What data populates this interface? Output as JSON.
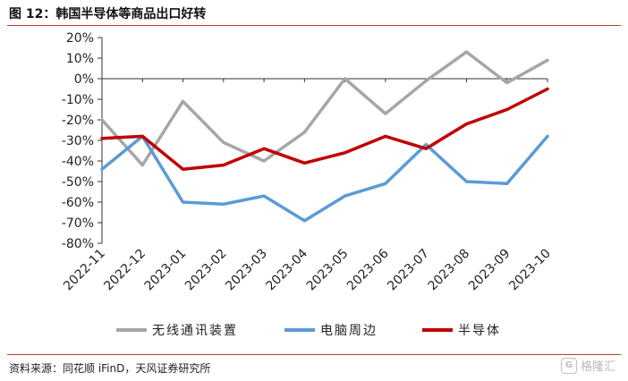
{
  "title": "图 12：韩国半导体等商品出口好转",
  "source": "资料来源：同花顺 iFinD，天风证券研究所",
  "watermark": {
    "logo": "G",
    "text": "格隆汇"
  },
  "chart_data": {
    "type": "line",
    "title": "",
    "xlabel": "",
    "ylabel": "",
    "x": [
      "2022-11",
      "2022-12",
      "2023-01",
      "2023-02",
      "2023-03",
      "2023-04",
      "2023-05",
      "2023-06",
      "2023-07",
      "2023-08",
      "2023-09",
      "2023-10"
    ],
    "y_ticks": [
      20,
      10,
      0,
      -10,
      -20,
      -30,
      -40,
      -50,
      -60,
      -70,
      -80
    ],
    "y_tick_labels": [
      "20%",
      "10%",
      "0%",
      "-10%",
      "-20%",
      "-30%",
      "-40%",
      "-50%",
      "-60%",
      "-70%",
      "-80%"
    ],
    "ylim": [
      -80,
      20
    ],
    "grid": false,
    "legend_position": "bottom",
    "series": [
      {
        "name": "无线通讯装置",
        "color": "#a6a6a6",
        "values": [
          -20,
          -42,
          -11,
          -31,
          -40,
          -26,
          0,
          -17,
          -1,
          13,
          -2,
          9
        ]
      },
      {
        "name": "电脑周边",
        "color": "#5b9bd5",
        "values": [
          -44,
          -28,
          -60,
          -61,
          -57,
          -69,
          -57,
          -51,
          -32,
          -50,
          -51,
          -28
        ]
      },
      {
        "name": "半导体",
        "color": "#c00000",
        "values": [
          -29,
          -28,
          -44,
          -42,
          -34,
          -41,
          -36,
          -28,
          -34,
          -22,
          -15,
          -5
        ]
      }
    ]
  }
}
